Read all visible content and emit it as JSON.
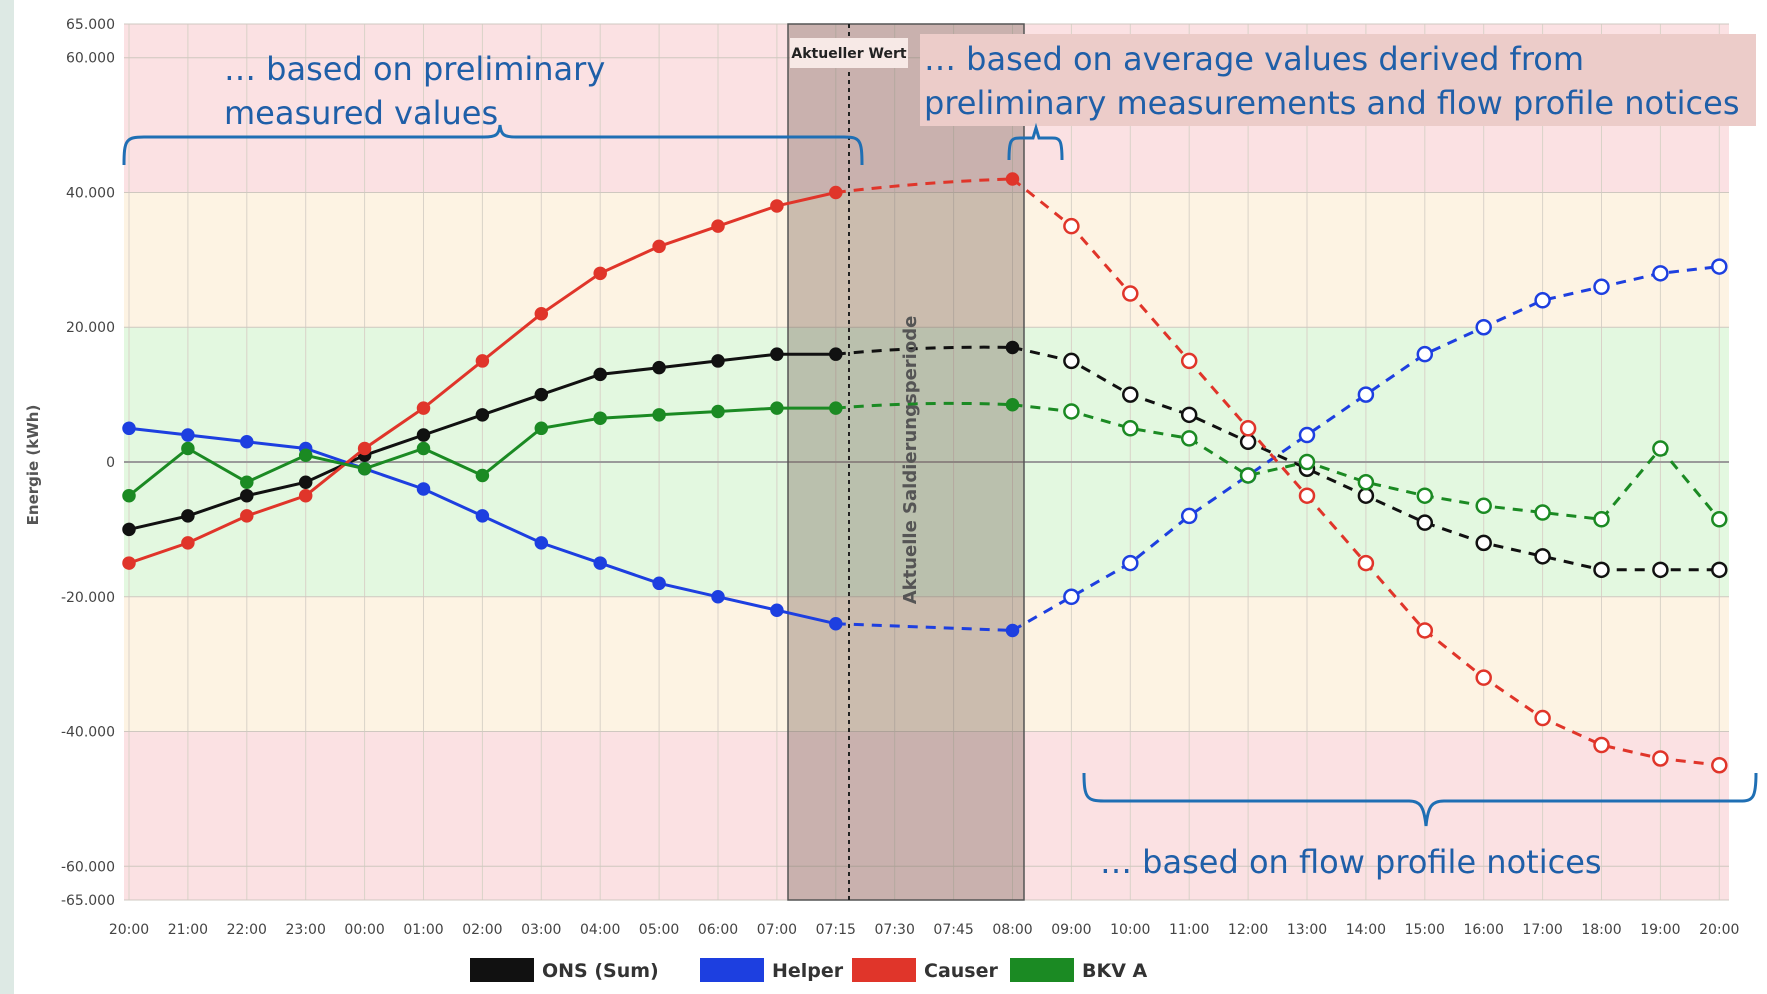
{
  "chart_data": {
    "type": "line",
    "ylabel": "Energie (kWh)",
    "ylim": [
      -65000,
      65000
    ],
    "yticks": [
      "65.000",
      "60.000",
      "40.000",
      "20.000",
      "0",
      "-20.000",
      "-40.000",
      "-60.000",
      "-65.000"
    ],
    "ytick_values": [
      65000,
      60000,
      40000,
      20000,
      0,
      -20000,
      -40000,
      -60000,
      -65000
    ],
    "categories": [
      "20:00",
      "21:00",
      "22:00",
      "23:00",
      "00:00",
      "01:00",
      "02:00",
      "03:00",
      "04:00",
      "05:00",
      "06:00",
      "07:00",
      "07:15",
      "07:30",
      "07:45",
      "08:00",
      "09:00",
      "10:00",
      "11:00",
      "12:00",
      "13:00",
      "14:00",
      "15:00",
      "16:00",
      "17:00",
      "18:00",
      "19:00",
      "20:00"
    ],
    "bands": [
      {
        "from": 40000,
        "to": 65000,
        "color": "#fbe1e3"
      },
      {
        "from": 20000,
        "to": 40000,
        "color": "#fdf3e3"
      },
      {
        "from": -20000,
        "to": 20000,
        "color": "#e3f8e0"
      },
      {
        "from": -40000,
        "to": -20000,
        "color": "#fdf3e3"
      },
      {
        "from": -65000,
        "to": -40000,
        "color": "#fbe1e3"
      }
    ],
    "series": [
      {
        "name": "ONS (Sum)",
        "color": "#111111",
        "values": [
          -10000,
          -8000,
          -5000,
          -3000,
          1000,
          4000,
          7000,
          10000,
          13000,
          14000,
          15000,
          16000,
          16000,
          null,
          null,
          17000,
          15000,
          10000,
          7000,
          3000,
          -1000,
          -5000,
          -9000,
          -12000,
          -14000,
          -16000,
          -16000,
          -16000
        ]
      },
      {
        "name": "Helper",
        "color": "#1d3fe0",
        "values": [
          5000,
          4000,
          3000,
          2000,
          -1000,
          -4000,
          -8000,
          -12000,
          -15000,
          -18000,
          -20000,
          -22000,
          -24000,
          null,
          null,
          -25000,
          -20000,
          -15000,
          -8000,
          -2000,
          4000,
          10000,
          16000,
          20000,
          24000,
          26000,
          28000,
          29000
        ]
      },
      {
        "name": "Causer",
        "color": "#e0352a",
        "values": [
          -15000,
          -12000,
          -8000,
          -5000,
          2000,
          8000,
          15000,
          22000,
          28000,
          32000,
          35000,
          38000,
          40000,
          null,
          null,
          42000,
          35000,
          25000,
          15000,
          5000,
          -5000,
          -15000,
          -25000,
          -32000,
          -38000,
          -42000,
          -44000,
          -45000
        ]
      },
      {
        "name": "BKV A",
        "color": "#1b8a23",
        "values": [
          -5000,
          2000,
          -3000,
          1000,
          -1000,
          2000,
          -2000,
          5000,
          6500,
          7000,
          7500,
          8000,
          8000,
          null,
          null,
          8500,
          7500,
          5000,
          3500,
          -2000,
          0,
          -3000,
          -5000,
          -6500,
          -7500,
          -8500,
          2000,
          -8500
        ]
      }
    ]
  },
  "markers": {
    "current_value_label": "Aktueller Wert",
    "period_label": "Aktuelle Saldierungsperiode"
  },
  "annotations": {
    "measured": [
      "… based on preliminary",
      "measured values"
    ],
    "average": [
      "… based on average values derived from",
      "preliminary measurements and flow profile notices"
    ],
    "flow": "… based on flow profile notices"
  }
}
